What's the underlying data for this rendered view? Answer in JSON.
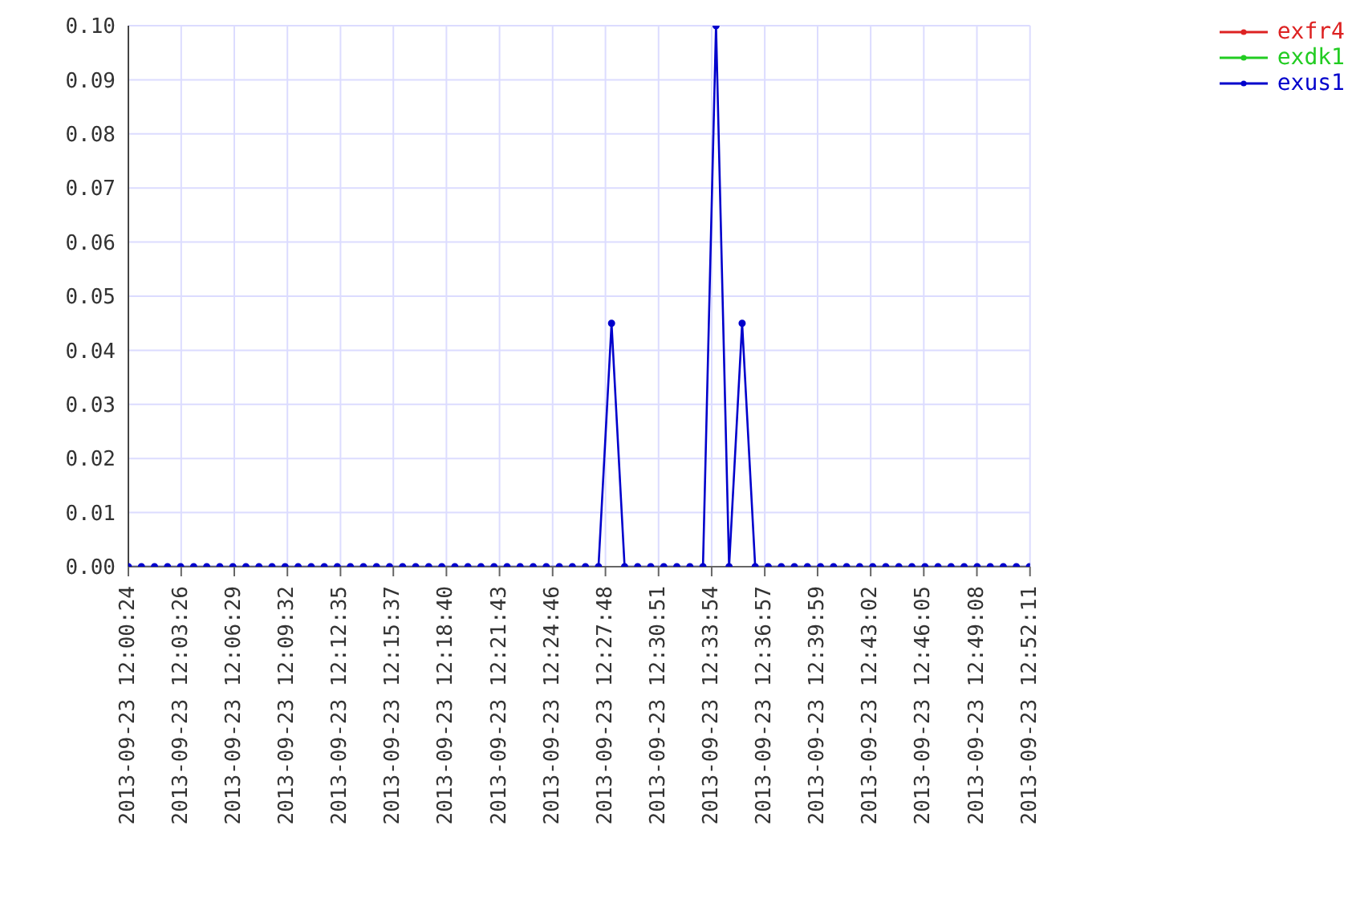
{
  "chart_data": {
    "type": "line",
    "x": [
      "2013-09-23T12:00:24",
      "2013-09-23T12:01:09",
      "2013-09-23T12:01:54",
      "2013-09-23T12:02:39",
      "2013-09-23T12:03:24",
      "2013-09-23T12:04:09",
      "2013-09-23T12:04:54",
      "2013-09-23T12:05:39",
      "2013-09-23T12:06:24",
      "2013-09-23T12:07:09",
      "2013-09-23T12:07:54",
      "2013-09-23T12:08:39",
      "2013-09-23T12:09:24",
      "2013-09-23T12:10:09",
      "2013-09-23T12:10:54",
      "2013-09-23T12:11:39",
      "2013-09-23T12:12:24",
      "2013-09-23T12:13:09",
      "2013-09-23T12:13:54",
      "2013-09-23T12:14:39",
      "2013-09-23T12:15:24",
      "2013-09-23T12:16:09",
      "2013-09-23T12:16:54",
      "2013-09-23T12:17:39",
      "2013-09-23T12:18:24",
      "2013-09-23T12:19:09",
      "2013-09-23T12:19:54",
      "2013-09-23T12:20:39",
      "2013-09-23T12:21:24",
      "2013-09-23T12:22:09",
      "2013-09-23T12:22:54",
      "2013-09-23T12:23:39",
      "2013-09-23T12:24:24",
      "2013-09-23T12:25:09",
      "2013-09-23T12:25:54",
      "2013-09-23T12:26:39",
      "2013-09-23T12:27:24",
      "2013-09-23T12:28:09",
      "2013-09-23T12:28:54",
      "2013-09-23T12:29:39",
      "2013-09-23T12:30:24",
      "2013-09-23T12:31:09",
      "2013-09-23T12:31:54",
      "2013-09-23T12:32:39",
      "2013-09-23T12:33:24",
      "2013-09-23T12:34:09",
      "2013-09-23T12:34:54",
      "2013-09-23T12:35:39",
      "2013-09-23T12:36:24",
      "2013-09-23T12:37:09",
      "2013-09-23T12:37:54",
      "2013-09-23T12:38:39",
      "2013-09-23T12:39:24",
      "2013-09-23T12:40:09",
      "2013-09-23T12:40:54",
      "2013-09-23T12:41:39",
      "2013-09-23T12:42:24",
      "2013-09-23T12:43:09",
      "2013-09-23T12:43:54",
      "2013-09-23T12:44:39",
      "2013-09-23T12:45:24",
      "2013-09-23T12:46:09",
      "2013-09-23T12:46:54",
      "2013-09-23T12:47:39",
      "2013-09-23T12:48:24",
      "2013-09-23T12:49:09",
      "2013-09-23T12:49:54",
      "2013-09-23T12:50:39",
      "2013-09-23T12:51:24",
      "2013-09-23T12:52:09"
    ],
    "series": [
      {
        "name": "exfr4",
        "color": "#dd2222",
        "values": [
          null,
          null,
          null,
          null,
          null,
          null,
          null,
          null,
          null,
          null,
          null,
          null,
          null,
          null,
          null,
          null,
          null,
          null,
          null,
          null,
          null,
          null,
          null,
          null,
          null,
          null,
          null,
          null,
          null,
          null,
          null,
          null,
          null,
          null,
          null,
          null,
          null,
          null,
          null,
          null,
          null,
          null,
          null,
          null,
          null,
          null,
          null,
          null,
          null,
          null,
          null,
          null,
          null,
          null,
          null,
          null,
          null,
          null,
          null,
          null,
          null,
          null,
          null,
          null,
          null,
          null,
          null,
          null,
          null,
          null
        ]
      },
      {
        "name": "exdk1",
        "color": "#22cc22",
        "values": [
          null,
          null,
          null,
          null,
          null,
          null,
          null,
          null,
          null,
          null,
          null,
          null,
          null,
          null,
          null,
          null,
          null,
          null,
          null,
          null,
          null,
          null,
          null,
          null,
          null,
          null,
          null,
          null,
          null,
          null,
          null,
          null,
          null,
          null,
          null,
          null,
          null,
          null,
          null,
          null,
          null,
          null,
          null,
          null,
          null,
          null,
          null,
          null,
          null,
          null,
          null,
          null,
          null,
          null,
          null,
          null,
          null,
          null,
          null,
          null,
          null,
          null,
          null,
          null,
          null,
          null,
          null,
          null,
          null,
          null
        ]
      },
      {
        "name": "exus1",
        "color": "#0000cc",
        "values": [
          0,
          0,
          0,
          0,
          0,
          0,
          0,
          0,
          0,
          0,
          0,
          0,
          0,
          0,
          0,
          0,
          0,
          0,
          0,
          0,
          0,
          0,
          0,
          0,
          0,
          0,
          0,
          0,
          0,
          0,
          0,
          0,
          0,
          0,
          0,
          0,
          0,
          0.045,
          0,
          0,
          0,
          0,
          0,
          0,
          0,
          0.1,
          0,
          0.045,
          0,
          0,
          0,
          0,
          0,
          0,
          0,
          0,
          0,
          0,
          0,
          0,
          0,
          0,
          0,
          0,
          0,
          0,
          0,
          0,
          0,
          0
        ]
      }
    ],
    "xlim": [
      "2013-09-23T12:00:24",
      "2013-09-23T12:52:11"
    ],
    "xticks": [
      {
        "value": "2013-09-23T12:00:24",
        "label": "2013-09-23 12:00:24"
      },
      {
        "value": "2013-09-23T12:03:26",
        "label": "2013-09-23 12:03:26"
      },
      {
        "value": "2013-09-23T12:06:29",
        "label": "2013-09-23 12:06:29"
      },
      {
        "value": "2013-09-23T12:09:32",
        "label": "2013-09-23 12:09:32"
      },
      {
        "value": "2013-09-23T12:12:35",
        "label": "2013-09-23 12:12:35"
      },
      {
        "value": "2013-09-23T12:15:37",
        "label": "2013-09-23 12:15:37"
      },
      {
        "value": "2013-09-23T12:18:40",
        "label": "2013-09-23 12:18:40"
      },
      {
        "value": "2013-09-23T12:21:43",
        "label": "2013-09-23 12:21:43"
      },
      {
        "value": "2013-09-23T12:24:46",
        "label": "2013-09-23 12:24:46"
      },
      {
        "value": "2013-09-23T12:27:48",
        "label": "2013-09-23 12:27:48"
      },
      {
        "value": "2013-09-23T12:30:51",
        "label": "2013-09-23 12:30:51"
      },
      {
        "value": "2013-09-23T12:33:54",
        "label": "2013-09-23 12:33:54"
      },
      {
        "value": "2013-09-23T12:36:57",
        "label": "2013-09-23 12:36:57"
      },
      {
        "value": "2013-09-23T12:39:59",
        "label": "2013-09-23 12:39:59"
      },
      {
        "value": "2013-09-23T12:43:02",
        "label": "2013-09-23 12:43:02"
      },
      {
        "value": "2013-09-23T12:46:05",
        "label": "2013-09-23 12:46:05"
      },
      {
        "value": "2013-09-23T12:49:08",
        "label": "2013-09-23 12:49:08"
      },
      {
        "value": "2013-09-23T12:52:11",
        "label": "2013-09-23 12:52:11"
      }
    ],
    "ylim": [
      0,
      0.1
    ],
    "yticks": [
      {
        "value": 0,
        "label": "0.00"
      },
      {
        "value": 0.01,
        "label": "0.01"
      },
      {
        "value": 0.02,
        "label": "0.02"
      },
      {
        "value": 0.03,
        "label": "0.03"
      },
      {
        "value": 0.04,
        "label": "0.04"
      },
      {
        "value": 0.05,
        "label": "0.05"
      },
      {
        "value": 0.06,
        "label": "0.06"
      },
      {
        "value": 0.07,
        "label": "0.07"
      },
      {
        "value": 0.08,
        "label": "0.08"
      },
      {
        "value": 0.09,
        "label": "0.09"
      },
      {
        "value": 0.1,
        "label": "0.10"
      }
    ],
    "grid": true,
    "legend": "top right",
    "marker": "circle",
    "line_style": "solid"
  }
}
